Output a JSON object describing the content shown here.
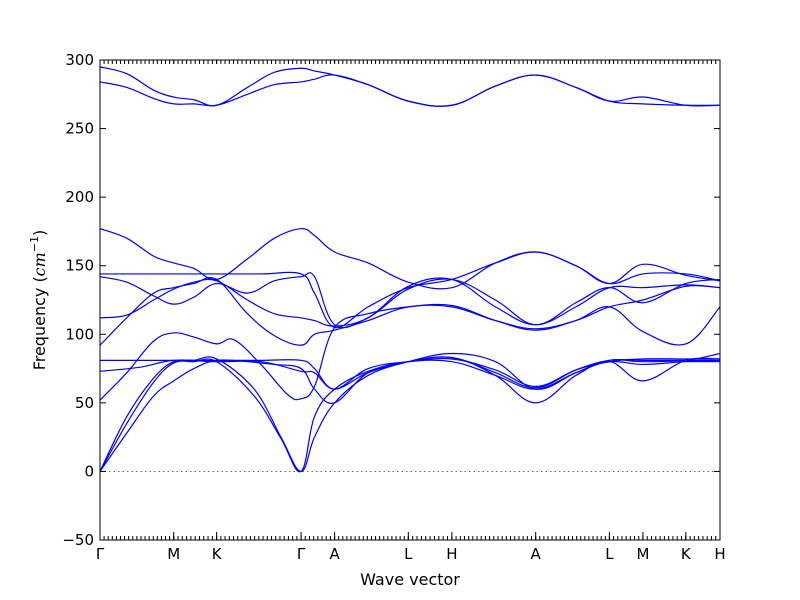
{
  "chart_data": {
    "type": "line",
    "xlabel": "Wave vector",
    "ylabel": "Frequency",
    "ylabel_unit": "cm",
    "ylabel_exp": "−1",
    "ylim": [
      -50,
      300
    ],
    "yticks": [
      "−50",
      "0",
      "50",
      "100",
      "150",
      "200",
      "250",
      "300"
    ],
    "ytick_values": [
      -50,
      0,
      50,
      100,
      150,
      200,
      250,
      300
    ],
    "high_symmetry_points": [
      {
        "label": "Γ",
        "x": 0.0
      },
      {
        "label": "M",
        "x": 1.1
      },
      {
        "label": "K",
        "x": 1.74
      },
      {
        "label": "Γ",
        "x": 3.0
      },
      {
        "label": "A",
        "x": 3.5
      },
      {
        "label": "L",
        "x": 4.6
      },
      {
        "label": "H",
        "x": 5.25
      },
      {
        "label": "A",
        "x": 6.5
      },
      {
        "label": "L",
        "x": 7.6
      },
      {
        "label": "M",
        "x": 8.1
      },
      {
        "label": "K",
        "x": 8.74
      },
      {
        "label": "H",
        "x": 9.25
      }
    ],
    "xlim": [
      0,
      9.25
    ],
    "zero_line": true,
    "color": "#0000ff",
    "branches": [
      [
        [
          0,
          0
        ],
        [
          0.4,
          28
        ],
        [
          0.8,
          55
        ],
        [
          1.1,
          66
        ],
        [
          1.4,
          75
        ],
        [
          1.74,
          81
        ],
        [
          2.2,
          80
        ],
        [
          2.6,
          78
        ],
        [
          3.0,
          75
        ],
        [
          3.2,
          60
        ],
        [
          3.5,
          50
        ],
        [
          4.0,
          72
        ],
        [
          4.6,
          80
        ],
        [
          5.25,
          83
        ],
        [
          5.9,
          70
        ],
        [
          6.5,
          50
        ],
        [
          7.1,
          70
        ],
        [
          7.6,
          80
        ],
        [
          8.1,
          66
        ],
        [
          8.74,
          81
        ],
        [
          9.25,
          82
        ]
      ],
      [
        [
          0,
          0
        ],
        [
          0.4,
          35
        ],
        [
          0.8,
          65
        ],
        [
          1.1,
          79
        ],
        [
          1.4,
          80
        ],
        [
          1.74,
          80
        ],
        [
          2.3,
          55
        ],
        [
          2.7,
          24
        ],
        [
          3.0,
          0
        ],
        [
          3.2,
          40
        ],
        [
          3.5,
          60
        ],
        [
          4.0,
          73
        ],
        [
          4.6,
          80
        ],
        [
          5.25,
          80
        ],
        [
          5.9,
          70
        ],
        [
          6.5,
          60
        ],
        [
          7.1,
          72
        ],
        [
          7.6,
          80
        ],
        [
          8.1,
          78
        ],
        [
          8.74,
          80
        ],
        [
          9.25,
          80
        ]
      ],
      [
        [
          0,
          0
        ],
        [
          0.4,
          40
        ],
        [
          0.8,
          68
        ],
        [
          1.1,
          80
        ],
        [
          1.4,
          81
        ],
        [
          1.74,
          82
        ],
        [
          2.3,
          60
        ],
        [
          2.7,
          25
        ],
        [
          3.0,
          0
        ],
        [
          3.2,
          25
        ],
        [
          3.5,
          50
        ],
        [
          4.0,
          70
        ],
        [
          4.6,
          80
        ],
        [
          5.25,
          86
        ],
        [
          5.9,
          80
        ],
        [
          6.5,
          60
        ],
        [
          7.1,
          72
        ],
        [
          7.6,
          81
        ],
        [
          8.1,
          80
        ],
        [
          8.74,
          81
        ],
        [
          9.25,
          86
        ]
      ],
      [
        [
          0,
          52
        ],
        [
          0.4,
          72
        ],
        [
          0.8,
          95
        ],
        [
          1.1,
          101
        ],
        [
          1.4,
          98
        ],
        [
          1.74,
          93
        ],
        [
          2.0,
          96
        ],
        [
          2.4,
          78
        ],
        [
          2.8,
          56
        ],
        [
          3.0,
          53
        ],
        [
          3.2,
          62
        ],
        [
          3.5,
          105
        ],
        [
          4.0,
          115
        ],
        [
          4.6,
          120
        ],
        [
          5.25,
          121
        ],
        [
          5.9,
          110
        ],
        [
          6.5,
          103
        ],
        [
          7.1,
          110
        ],
        [
          7.6,
          120
        ],
        [
          8.1,
          102
        ],
        [
          8.74,
          93
        ],
        [
          9.25,
          120
        ]
      ],
      [
        [
          0,
          73
        ],
        [
          0.6,
          76
        ],
        [
          1.1,
          81
        ],
        [
          1.74,
          80
        ],
        [
          2.4,
          80
        ],
        [
          3.0,
          73
        ],
        [
          3.2,
          72
        ],
        [
          3.5,
          60
        ],
        [
          4.0,
          72
        ],
        [
          4.6,
          80
        ],
        [
          5.25,
          83
        ],
        [
          5.9,
          72
        ],
        [
          6.5,
          61
        ],
        [
          7.1,
          74
        ],
        [
          7.6,
          81
        ],
        [
          8.1,
          81
        ],
        [
          8.74,
          81
        ],
        [
          9.25,
          81
        ]
      ],
      [
        [
          0,
          81
        ],
        [
          0.6,
          81
        ],
        [
          1.1,
          81
        ],
        [
          1.74,
          81
        ],
        [
          2.4,
          81
        ],
        [
          3.0,
          81
        ],
        [
          3.2,
          75
        ],
        [
          3.5,
          60
        ],
        [
          4.0,
          75
        ],
        [
          4.6,
          80
        ],
        [
          5.25,
          82
        ],
        [
          5.9,
          74
        ],
        [
          6.5,
          62
        ],
        [
          7.1,
          74
        ],
        [
          7.6,
          80
        ],
        [
          8.1,
          82
        ],
        [
          8.74,
          82
        ],
        [
          9.25,
          82
        ]
      ],
      [
        [
          0,
          92
        ],
        [
          0.4,
          112
        ],
        [
          0.8,
          130
        ],
        [
          1.1,
          134
        ],
        [
          1.4,
          137
        ],
        [
          1.74,
          140
        ],
        [
          2.2,
          115
        ],
        [
          2.6,
          99
        ],
        [
          3.0,
          92
        ],
        [
          3.2,
          100
        ],
        [
          3.5,
          103
        ],
        [
          4.0,
          110
        ],
        [
          4.6,
          120
        ],
        [
          5.25,
          120
        ],
        [
          5.9,
          110
        ],
        [
          6.5,
          104
        ],
        [
          7.1,
          110
        ],
        [
          7.6,
          120
        ],
        [
          8.1,
          125
        ],
        [
          8.74,
          135
        ],
        [
          9.25,
          134
        ]
      ],
      [
        [
          0,
          112
        ],
        [
          0.4,
          114
        ],
        [
          0.8,
          125
        ],
        [
          1.1,
          133
        ],
        [
          1.4,
          138
        ],
        [
          1.74,
          139
        ],
        [
          2.2,
          125
        ],
        [
          2.6,
          115
        ],
        [
          3.0,
          112
        ],
        [
          3.2,
          110
        ],
        [
          3.5,
          106
        ],
        [
          4.0,
          112
        ],
        [
          4.6,
          135
        ],
        [
          5.25,
          140
        ],
        [
          5.9,
          120
        ],
        [
          6.5,
          107
        ],
        [
          7.1,
          120
        ],
        [
          7.6,
          134
        ],
        [
          8.1,
          134
        ],
        [
          8.74,
          136
        ],
        [
          9.25,
          134
        ]
      ],
      [
        [
          0,
          142
        ],
        [
          0.4,
          138
        ],
        [
          0.8,
          128
        ],
        [
          1.1,
          122
        ],
        [
          1.4,
          127
        ],
        [
          1.74,
          137
        ],
        [
          2.2,
          130
        ],
        [
          2.6,
          139
        ],
        [
          3.0,
          142
        ],
        [
          3.2,
          142
        ],
        [
          3.5,
          107
        ],
        [
          4.0,
          112
        ],
        [
          4.6,
          133
        ],
        [
          5.25,
          140
        ],
        [
          5.9,
          125
        ],
        [
          6.5,
          107
        ],
        [
          7.1,
          123
        ],
        [
          7.6,
          134
        ],
        [
          8.1,
          123
        ],
        [
          8.74,
          137
        ],
        [
          9.25,
          140
        ]
      ],
      [
        [
          0,
          144
        ],
        [
          1.1,
          144
        ],
        [
          1.74,
          144
        ],
        [
          2.4,
          144
        ],
        [
          3.0,
          144
        ],
        [
          3.2,
          130
        ],
        [
          3.5,
          105
        ],
        [
          4.0,
          120
        ],
        [
          4.6,
          134
        ],
        [
          5.25,
          140
        ],
        [
          5.9,
          152
        ],
        [
          6.5,
          160
        ],
        [
          7.1,
          150
        ],
        [
          7.6,
          137
        ],
        [
          8.1,
          144
        ],
        [
          8.74,
          144
        ],
        [
          9.25,
          139
        ]
      ],
      [
        [
          0,
          177
        ],
        [
          0.4,
          170
        ],
        [
          0.8,
          157
        ],
        [
          1.1,
          152
        ],
        [
          1.4,
          148
        ],
        [
          1.74,
          140
        ],
        [
          2.2,
          155
        ],
        [
          2.6,
          170
        ],
        [
          3.0,
          177
        ],
        [
          3.2,
          172
        ],
        [
          3.5,
          160
        ],
        [
          4.0,
          152
        ],
        [
          4.6,
          138
        ],
        [
          5.25,
          134
        ],
        [
          5.9,
          152
        ],
        [
          6.5,
          160
        ],
        [
          7.1,
          150
        ],
        [
          7.6,
          137
        ],
        [
          8.1,
          151
        ],
        [
          8.74,
          143
        ],
        [
          9.25,
          139
        ]
      ],
      [
        [
          0,
          284
        ],
        [
          0.4,
          280
        ],
        [
          0.8,
          272
        ],
        [
          1.1,
          268
        ],
        [
          1.4,
          268
        ],
        [
          1.74,
          267
        ],
        [
          2.2,
          275
        ],
        [
          2.6,
          282
        ],
        [
          3.0,
          284
        ],
        [
          3.2,
          286
        ],
        [
          3.5,
          289
        ],
        [
          4.0,
          282
        ],
        [
          4.6,
          270
        ],
        [
          5.25,
          267
        ],
        [
          5.9,
          281
        ],
        [
          6.5,
          289
        ],
        [
          7.1,
          280
        ],
        [
          7.6,
          270
        ],
        [
          8.1,
          268
        ],
        [
          8.74,
          267
        ],
        [
          9.25,
          267
        ]
      ],
      [
        [
          0,
          295
        ],
        [
          0.4,
          290
        ],
        [
          0.8,
          278
        ],
        [
          1.1,
          273
        ],
        [
          1.4,
          271
        ],
        [
          1.74,
          267
        ],
        [
          2.2,
          280
        ],
        [
          2.6,
          291
        ],
        [
          3.0,
          294
        ],
        [
          3.2,
          292
        ],
        [
          3.5,
          289
        ],
        [
          4.0,
          282
        ],
        [
          4.6,
          270
        ],
        [
          5.25,
          267
        ],
        [
          5.9,
          281
        ],
        [
          6.5,
          289
        ],
        [
          7.1,
          280
        ],
        [
          7.6,
          270
        ],
        [
          8.1,
          273
        ],
        [
          8.74,
          267
        ],
        [
          9.25,
          267
        ]
      ]
    ]
  }
}
